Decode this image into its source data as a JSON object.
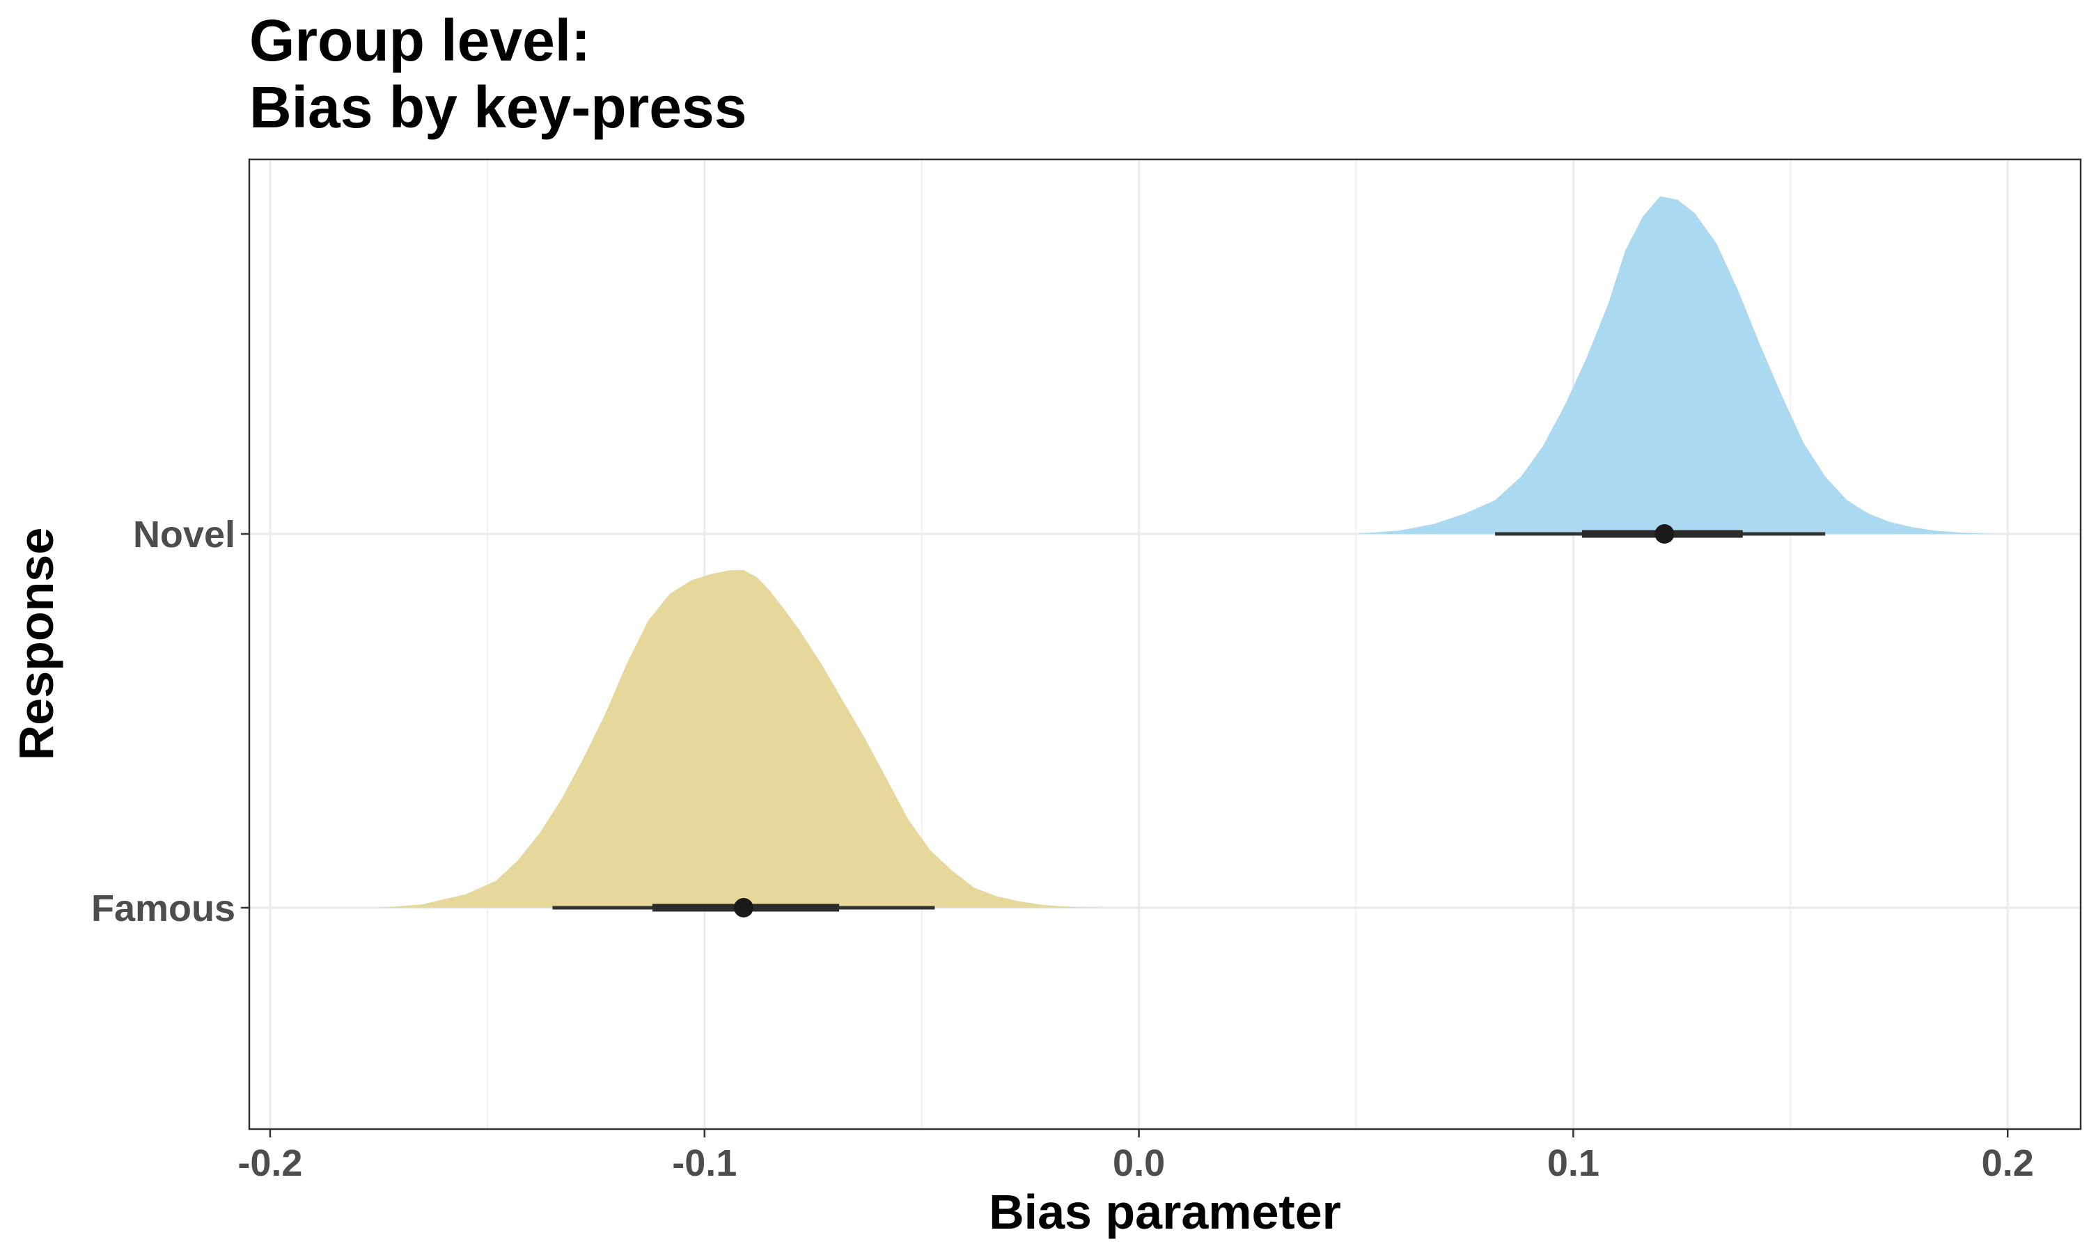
{
  "chart_data": {
    "type": "area",
    "subtype": "half-eye density with point interval",
    "title": [
      "Group level:",
      "Bias by key-press"
    ],
    "xlabel": "Bias parameter",
    "ylabel": "Response",
    "xlim": [
      -0.2048,
      0.2168
    ],
    "xticks": [
      -0.2,
      -0.1,
      0.0,
      0.1,
      0.2
    ],
    "xtick_labels": [
      "-0.2",
      "-0.1",
      "0.0",
      "0.1",
      "0.2"
    ],
    "categories": [
      "Famous",
      "Novel"
    ],
    "grid": true,
    "legend": "none",
    "series": [
      {
        "category": "Famous",
        "color": "#e6d89b",
        "density_x": [
          -0.175,
          -0.165,
          -0.155,
          -0.148,
          -0.143,
          -0.138,
          -0.133,
          -0.128,
          -0.123,
          -0.118,
          -0.113,
          -0.108,
          -0.103,
          -0.098,
          -0.094,
          -0.091,
          -0.088,
          -0.085,
          -0.082,
          -0.078,
          -0.073,
          -0.068,
          -0.063,
          -0.058,
          -0.053,
          -0.048,
          -0.043,
          -0.038,
          -0.033,
          -0.028,
          -0.022,
          -0.015,
          -0.008
        ],
        "density_y": [
          0.0,
          0.01,
          0.04,
          0.08,
          0.14,
          0.22,
          0.32,
          0.44,
          0.57,
          0.72,
          0.85,
          0.93,
          0.97,
          0.99,
          1.0,
          1.0,
          0.98,
          0.94,
          0.89,
          0.82,
          0.72,
          0.61,
          0.5,
          0.38,
          0.26,
          0.17,
          0.11,
          0.06,
          0.035,
          0.02,
          0.008,
          0.002,
          0.0
        ],
        "median": -0.091,
        "interval_66": [
          -0.112,
          -0.069
        ],
        "interval_95": [
          -0.135,
          -0.047
        ]
      },
      {
        "category": "Novel",
        "color": "#acd9f2",
        "density_x": [
          0.05,
          0.06,
          0.068,
          0.075,
          0.082,
          0.088,
          0.093,
          0.098,
          0.103,
          0.108,
          0.112,
          0.116,
          0.12,
          0.124,
          0.128,
          0.133,
          0.138,
          0.143,
          0.148,
          0.153,
          0.158,
          0.163,
          0.168,
          0.173,
          0.178,
          0.183,
          0.19,
          0.197
        ],
        "density_y": [
          0.0,
          0.01,
          0.03,
          0.06,
          0.1,
          0.17,
          0.26,
          0.38,
          0.52,
          0.68,
          0.84,
          0.94,
          1.0,
          0.99,
          0.95,
          0.86,
          0.72,
          0.56,
          0.41,
          0.27,
          0.17,
          0.1,
          0.06,
          0.035,
          0.02,
          0.01,
          0.003,
          0.0
        ],
        "median": 0.121,
        "interval_66": [
          0.102,
          0.139
        ],
        "interval_95": [
          0.082,
          0.158
        ]
      }
    ]
  }
}
